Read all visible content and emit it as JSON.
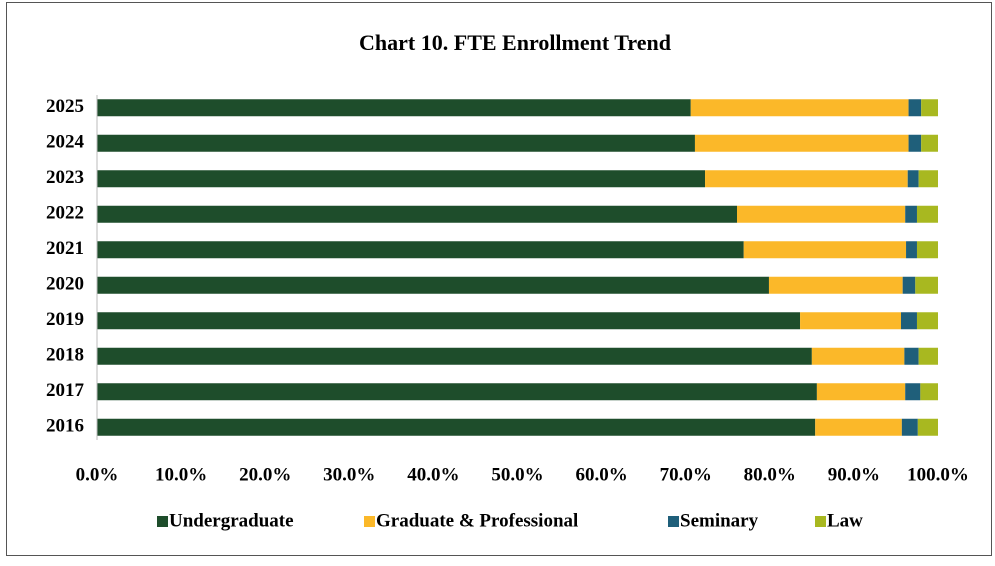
{
  "chart_data": {
    "type": "stacked-bar-horizontal",
    "title": "Chart 10. FTE Enrollment Trend",
    "categories": [
      "2025",
      "2024",
      "2023",
      "2022",
      "2021",
      "2020",
      "2019",
      "2018",
      "2017",
      "2016"
    ],
    "series": [
      {
        "name": "Undergraduate",
        "color": "#1e4d2b",
        "values": [
          70.6,
          71.1,
          72.3,
          76.1,
          76.9,
          79.9,
          83.6,
          85.0,
          85.6,
          85.4
        ]
      },
      {
        "name": "Graduate & Professional",
        "color": "#fbb829",
        "values": [
          25.9,
          25.4,
          24.1,
          20.0,
          19.3,
          15.9,
          12.0,
          11.0,
          10.5,
          10.3
        ]
      },
      {
        "name": "Seminary",
        "color": "#1f5f7a",
        "values": [
          1.5,
          1.5,
          1.3,
          1.4,
          1.3,
          1.5,
          1.9,
          1.7,
          1.8,
          1.9
        ]
      },
      {
        "name": "Law",
        "color": "#a8b820",
        "values": [
          2.0,
          2.0,
          2.3,
          2.5,
          2.5,
          2.7,
          2.5,
          2.3,
          2.1,
          2.4
        ]
      }
    ],
    "xlim": [
      0,
      100
    ],
    "xticks": [
      {
        "value": 0,
        "label": "0.0%"
      },
      {
        "value": 10,
        "label": "10.0%"
      },
      {
        "value": 20,
        "label": "20.0%"
      },
      {
        "value": 30,
        "label": "30.0%"
      },
      {
        "value": 40,
        "label": "40.0%"
      },
      {
        "value": 50,
        "label": "50.0%"
      },
      {
        "value": 60,
        "label": "60.0%"
      },
      {
        "value": 70,
        "label": "70.0%"
      },
      {
        "value": 80,
        "label": "80.0%"
      },
      {
        "value": 90,
        "label": "90.0%"
      },
      {
        "value": 100,
        "label": "100.0%"
      }
    ],
    "legend": "bottom"
  }
}
